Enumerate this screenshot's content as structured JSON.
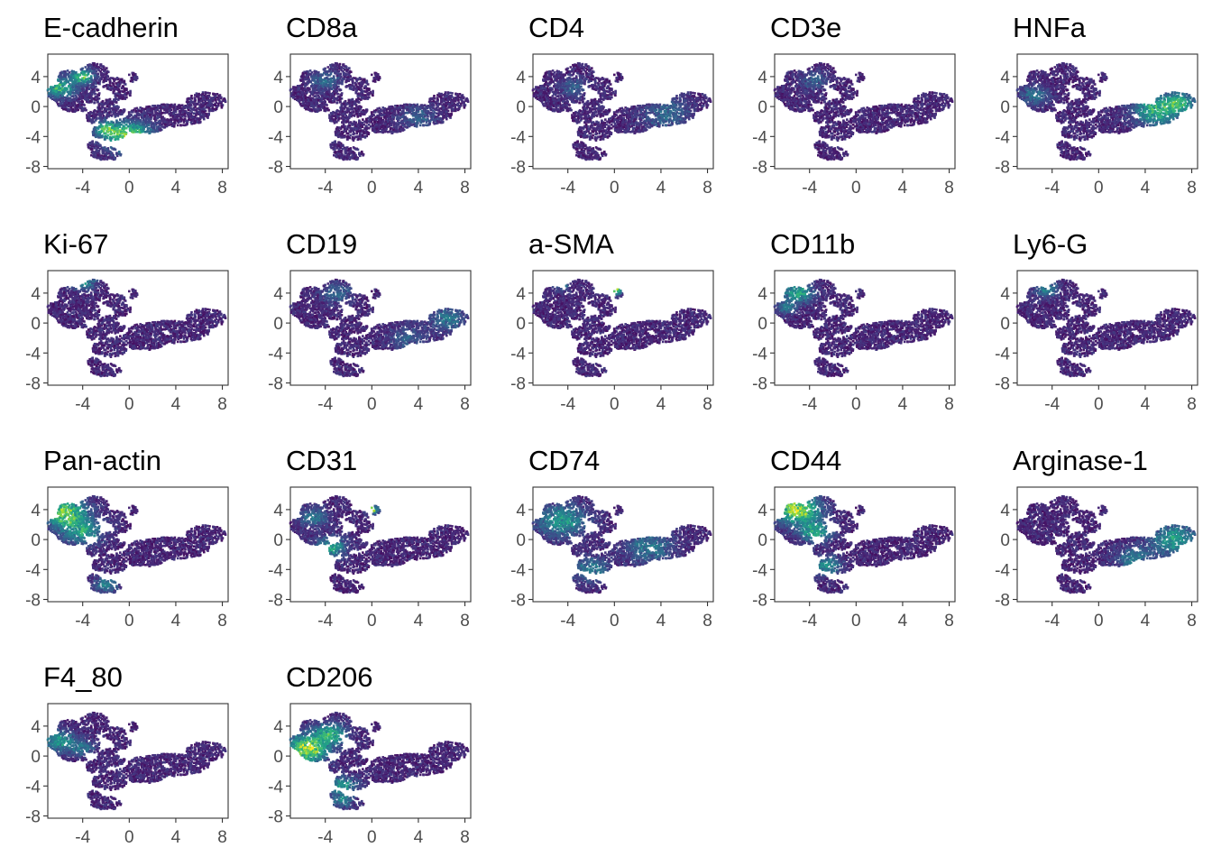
{
  "chart_data": {
    "type": "scatter",
    "layout": "faceted small multiples, 5 columns",
    "colormap": [
      "#440154",
      "#482878",
      "#3e4989",
      "#31688e",
      "#26828e",
      "#1f9e89",
      "#35b779",
      "#6ece58",
      "#b5de2b",
      "#fde725"
    ],
    "xlim": [
      -7,
      8.5
    ],
    "ylim": [
      -8.3,
      7
    ],
    "xticks": [
      -4,
      0,
      4,
      8
    ],
    "yticks": [
      4,
      0,
      -4,
      -8
    ],
    "grid": false,
    "legend": "none",
    "marker_panels": [
      {
        "title": "E-cadherin",
        "highlights": [
          {
            "x": -6.0,
            "y": 2.5,
            "r": 1.3,
            "v": 0.55
          },
          {
            "x": -4.0,
            "y": 4.0,
            "r": 0.9,
            "v": 0.65
          },
          {
            "x": 0.0,
            "y": -4.0,
            "r": 1.8,
            "v": 0.75
          },
          {
            "x": -2.0,
            "y": -3.0,
            "r": 1.0,
            "v": 0.5
          }
        ]
      },
      {
        "title": "CD8a",
        "highlights": [
          {
            "x": -4.0,
            "y": 3.5,
            "r": 1.2,
            "v": 0.25
          },
          {
            "x": 4.0,
            "y": -1.5,
            "r": 1.5,
            "v": 0.2
          }
        ]
      },
      {
        "title": "CD4",
        "highlights": [
          {
            "x": 4.5,
            "y": -1.0,
            "r": 2.0,
            "v": 0.25
          },
          {
            "x": -3.5,
            "y": 2.5,
            "r": 1.2,
            "v": 0.2
          }
        ]
      },
      {
        "title": "CD3e",
        "highlights": [
          {
            "x": -3.5,
            "y": 3.5,
            "r": 1.2,
            "v": 0.2
          }
        ]
      },
      {
        "title": "HNFa",
        "highlights": [
          {
            "x": 5.0,
            "y": -0.5,
            "r": 2.0,
            "v": 0.55
          },
          {
            "x": 7.0,
            "y": 0.5,
            "r": 1.2,
            "v": 0.5
          },
          {
            "x": -5.5,
            "y": 1.5,
            "r": 1.2,
            "v": 0.3
          }
        ]
      },
      {
        "title": "Ki-67",
        "highlights": [
          {
            "x": -4.0,
            "y": 5.5,
            "r": 1.0,
            "v": 0.45
          }
        ]
      },
      {
        "title": "CD19",
        "highlights": [
          {
            "x": 6.5,
            "y": 0.5,
            "r": 1.5,
            "v": 0.3
          },
          {
            "x": -3.0,
            "y": 4.0,
            "r": 1.3,
            "v": 0.25
          },
          {
            "x": 3.0,
            "y": -2.0,
            "r": 1.5,
            "v": 0.2
          }
        ]
      },
      {
        "title": "a-SMA",
        "highlights": [
          {
            "x": 0.0,
            "y": 4.3,
            "r": 0.5,
            "v": 0.95
          },
          {
            "x": -4.5,
            "y": 5.0,
            "r": 0.6,
            "v": 0.35
          }
        ]
      },
      {
        "title": "CD11b",
        "highlights": [
          {
            "x": -5.0,
            "y": 4.0,
            "r": 1.3,
            "v": 0.5
          },
          {
            "x": -6.0,
            "y": 2.0,
            "r": 0.8,
            "v": 0.3
          }
        ]
      },
      {
        "title": "Ly6-G",
        "highlights": [
          {
            "x": -4.5,
            "y": 4.5,
            "r": 1.0,
            "v": 0.35
          }
        ]
      },
      {
        "title": "Pan-actin",
        "highlights": [
          {
            "x": -5.5,
            "y": 3.5,
            "r": 1.8,
            "v": 0.7
          },
          {
            "x": -4.0,
            "y": 1.0,
            "r": 1.6,
            "v": 0.45
          },
          {
            "x": -2.0,
            "y": -6.0,
            "r": 1.0,
            "v": 0.35
          }
        ]
      },
      {
        "title": "CD31",
        "highlights": [
          {
            "x": 0.0,
            "y": 4.0,
            "r": 0.5,
            "v": 0.9
          },
          {
            "x": -3.5,
            "y": -1.0,
            "r": 1.3,
            "v": 0.45
          },
          {
            "x": -5.0,
            "y": 3.0,
            "r": 1.2,
            "v": 0.3
          }
        ]
      },
      {
        "title": "CD74",
        "highlights": [
          {
            "x": -4.5,
            "y": 2.5,
            "r": 2.0,
            "v": 0.45
          },
          {
            "x": -2.0,
            "y": -4.0,
            "r": 1.5,
            "v": 0.35
          },
          {
            "x": 3.0,
            "y": -1.0,
            "r": 2.0,
            "v": 0.3
          }
        ]
      },
      {
        "title": "CD44",
        "highlights": [
          {
            "x": -5.0,
            "y": 4.0,
            "r": 1.8,
            "v": 0.8
          },
          {
            "x": -3.5,
            "y": 1.0,
            "r": 1.3,
            "v": 0.5
          },
          {
            "x": -2.5,
            "y": -3.5,
            "r": 1.2,
            "v": 0.4
          }
        ]
      },
      {
        "title": "Arginase-1",
        "highlights": [
          {
            "x": 6.5,
            "y": 0.0,
            "r": 2.0,
            "v": 0.45
          },
          {
            "x": 3.0,
            "y": -2.5,
            "r": 1.5,
            "v": 0.3
          }
        ]
      },
      {
        "title": "F4_80",
        "highlights": [
          {
            "x": -6.0,
            "y": 2.0,
            "r": 1.3,
            "v": 0.45
          },
          {
            "x": -4.0,
            "y": 1.0,
            "r": 1.0,
            "v": 0.3
          }
        ]
      },
      {
        "title": "CD206",
        "highlights": [
          {
            "x": -5.5,
            "y": 1.0,
            "r": 1.7,
            "v": 0.85
          },
          {
            "x": -3.5,
            "y": 3.0,
            "r": 1.3,
            "v": 0.55
          },
          {
            "x": -2.5,
            "y": -4.0,
            "r": 1.2,
            "v": 0.45
          },
          {
            "x": -2.5,
            "y": -6.0,
            "r": 0.8,
            "v": 0.35
          }
        ]
      }
    ]
  }
}
